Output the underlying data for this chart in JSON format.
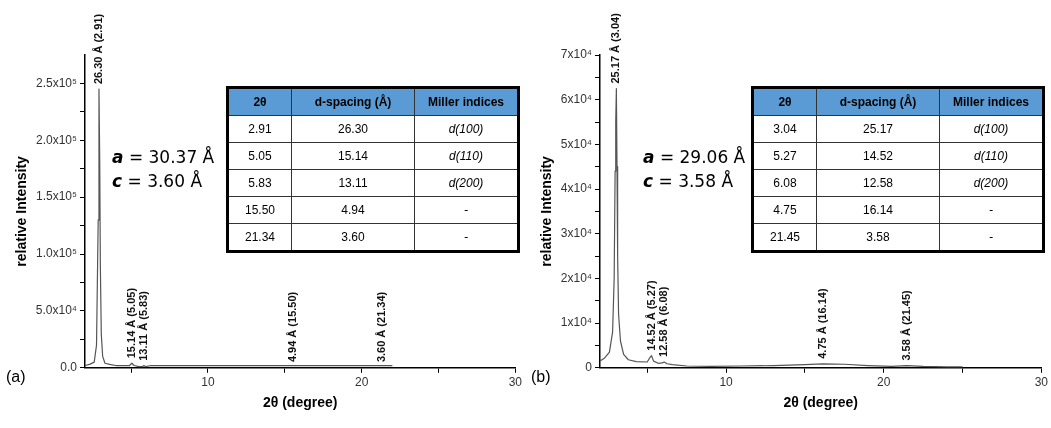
{
  "chart_data": [
    {
      "type": "line",
      "xlabel": "2θ (degree)",
      "ylabel": "relative Intensity",
      "xlim": [
        2,
        30
      ],
      "ylim": [
        0,
        275000
      ],
      "xticks": [
        {
          "value": 5,
          "label": null
        },
        10,
        {
          "value": 15,
          "label": null
        },
        20,
        {
          "value": 25,
          "label": null
        },
        30
      ],
      "yticks": [
        {
          "value": 0,
          "label": "0.0"
        },
        {
          "value": 25000,
          "label": null
        },
        {
          "value": 50000,
          "label": "5.0x10⁴"
        },
        {
          "value": 75000,
          "label": null
        },
        {
          "value": 100000,
          "label": "1.0x10⁵"
        },
        {
          "value": 125000,
          "label": null
        },
        {
          "value": 150000,
          "label": "1.5x10⁵"
        },
        {
          "value": 175000,
          "label": null
        },
        {
          "value": 200000,
          "label": "2.0x10⁵"
        },
        {
          "value": 225000,
          "label": null
        },
        {
          "value": 250000,
          "label": "2.5x10⁵"
        }
      ],
      "grid": false,
      "legend": false,
      "marker": "none",
      "line_style": "solid",
      "x": [
        2.0,
        2.3,
        2.6,
        2.75,
        2.82,
        2.86,
        2.91,
        2.96,
        3.0,
        3.06,
        3.15,
        3.3,
        3.6,
        4.0,
        4.6,
        4.9,
        5.05,
        5.2,
        5.5,
        5.75,
        5.83,
        5.95,
        6.3,
        6.6,
        12.0,
        13,
        15.5,
        17,
        18.0,
        20.7,
        21.34,
        22.0
      ],
      "series": [
        {
          "color": "#555555",
          "values": [
            2000,
            3000,
            5000,
            20000,
            90000,
            130000,
            245000,
            180000,
            90000,
            30000,
            10000,
            4000,
            3000,
            2000,
            2000,
            2000,
            4000,
            2000,
            1000,
            1000,
            2000,
            1000,
            2000,
            2000,
            2000,
            2000,
            2000,
            2000,
            2000,
            2000,
            2000,
            2000
          ]
        }
      ],
      "annotations": [
        {
          "text": "26.30 Å (2.91)",
          "x": 2.91,
          "y": 245000
        },
        {
          "text": "15.14 Å (5.05)",
          "x": 5.05,
          "y": 4000
        },
        {
          "text": "13.11 Å (5.83)",
          "x": 5.83,
          "y": 1800
        },
        {
          "text": "4.94 Å (15.50)",
          "x": 15.5,
          "y": 600
        },
        {
          "text": "3.60 Å (21.34)",
          "x": 21.34,
          "y": 600
        },
        "(a)",
        "a = 30.37 Å",
        "c = 3.60  Å",
        "2θ",
        "d-spacing (Å)",
        "Miller indices",
        "2.91",
        "26.30",
        "d(100)",
        "5.05",
        "15.14",
        "d(110)",
        "5.83",
        "13.11",
        "d(200)",
        "15.50",
        "4.94",
        "-",
        "21.34",
        "3.60",
        "-"
      ]
    },
    {
      "type": "line",
      "xlabel": "2θ (degree)",
      "ylabel": "relative Intensity",
      "xlim": [
        2,
        30
      ],
      "ylim": [
        0,
        70000
      ],
      "xticks": [
        {
          "value": 5,
          "label": null
        },
        10,
        {
          "value": 15,
          "label": null
        },
        20,
        {
          "value": 25,
          "label": null
        },
        30
      ],
      "yticks": [
        0,
        {
          "value": 5000,
          "label": null
        },
        {
          "value": 10000,
          "label": "1x10⁴"
        },
        {
          "value": 15000,
          "label": null
        },
        {
          "value": 20000,
          "label": "2x10⁴"
        },
        {
          "value": 25000,
          "label": null
        },
        {
          "value": 30000,
          "label": "3x10⁴"
        },
        {
          "value": 35000,
          "label": null
        },
        {
          "value": 40000,
          "label": "4x10⁴"
        },
        {
          "value": 45000,
          "label": null
        },
        {
          "value": 50000,
          "label": "5x10⁴"
        },
        {
          "value": 55000,
          "label": null
        },
        {
          "value": 60000,
          "label": "6x10⁴"
        },
        {
          "value": 65000,
          "label": null
        },
        {
          "value": 70000,
          "label": "7x10⁴"
        }
      ],
      "grid": false,
      "legend": false,
      "marker": "none",
      "line_style": "solid",
      "x": [
        2.0,
        2.3,
        2.6,
        2.8,
        2.9,
        2.96,
        3.0,
        3.04,
        3.08,
        3.12,
        3.18,
        3.3,
        3.5,
        3.8,
        4.3,
        5.0,
        5.15,
        5.27,
        5.4,
        5.7,
        5.95,
        6.08,
        6.25,
        6.6,
        7.5,
        9,
        11,
        13,
        15,
        16.14,
        17.5,
        19,
        20.5,
        21.45,
        22.5,
        24,
        25
      ],
      "series": [
        {
          "color": "#555555",
          "values": [
            1500,
            2200,
            3500,
            8000,
            20000,
            44000,
            55000,
            62500,
            45000,
            25000,
            12000,
            6000,
            3000,
            1800,
            1400,
            1300,
            2200,
            2700,
            1500,
            1000,
            1100,
            1300,
            900,
            700,
            400,
            300,
            400,
            500,
            700,
            900,
            800,
            500,
            300,
            500,
            300,
            200,
            200
          ]
        }
      ],
      "annotations": [
        {
          "text": "25.17 Å (3.04)",
          "x": 3.04,
          "y": 62500
        },
        {
          "text": "14.52 Å (5.27)",
          "x": 5.27,
          "y": 2700
        },
        {
          "text": "12.58 Å (6.08)",
          "x": 6.08,
          "y": 1300
        },
        {
          "text": "4.75 Å (16.14)",
          "x": 16.14,
          "y": 900
        },
        {
          "text": "3.58 Å (21.45)",
          "x": 21.45,
          "y": 500
        },
        "(b)",
        "a = 29.06 Å",
        "c = 3.58  Å",
        "2θ",
        "d-spacing (Å)",
        "Miller indices",
        "3.04",
        "25.17",
        "d(100)",
        "5.27",
        "14.52",
        "d(110)",
        "6.08",
        "12.58",
        "d(200)",
        "4.75",
        "16.14",
        "-",
        "21.45",
        "3.58",
        "-"
      ]
    }
  ]
}
